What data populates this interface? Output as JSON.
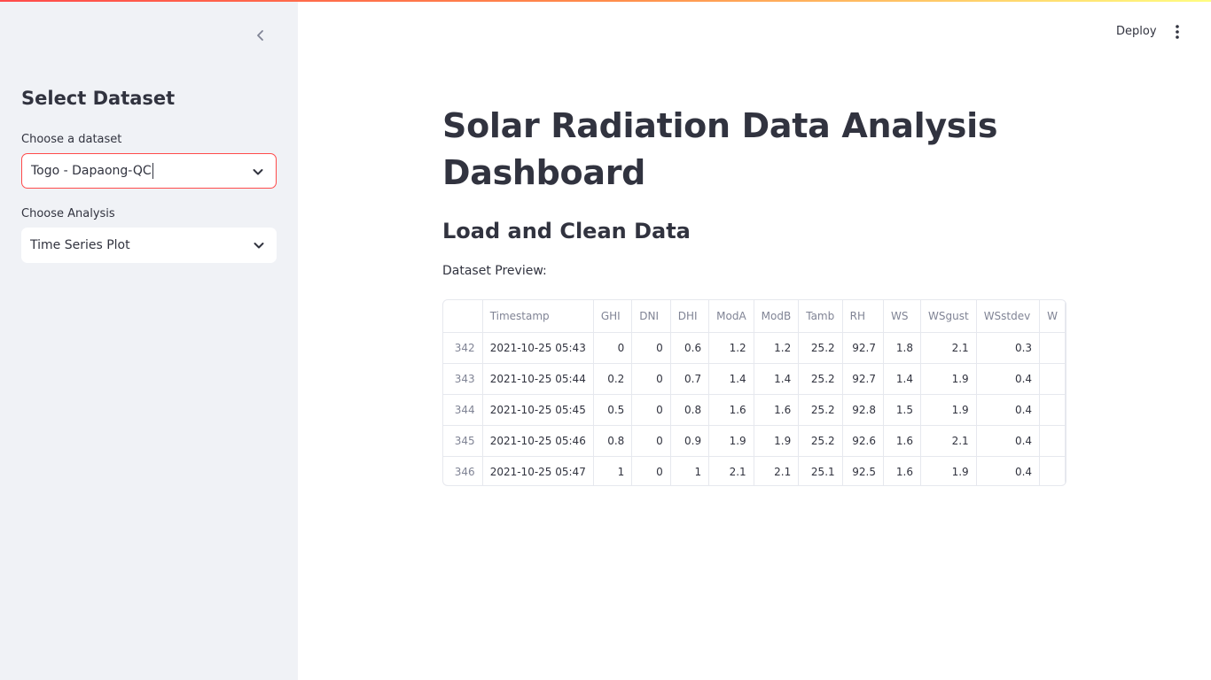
{
  "sidebar": {
    "title": "Select Dataset",
    "dataset_label": "Choose a dataset",
    "dataset_value": "Togo - Dapaong-QC",
    "analysis_label": "Choose Analysis",
    "analysis_value": "Time Series Plot"
  },
  "header": {
    "deploy_label": "Deploy"
  },
  "main": {
    "title": "Solar Radiation Data Analysis Dashboard",
    "subtitle": "Load and Clean Data",
    "preview_label": "Dataset Preview:"
  },
  "table": {
    "columns": [
      "",
      "Timestamp",
      "GHI",
      "DNI",
      "DHI",
      "ModA",
      "ModB",
      "Tamb",
      "RH",
      "WS",
      "WSgust",
      "WSstdev",
      "W"
    ],
    "rows": [
      [
        "342",
        "2021-10-25 05:43",
        "0",
        "0",
        "0.6",
        "1.2",
        "1.2",
        "25.2",
        "92.7",
        "1.8",
        "2.1",
        "0.3",
        ""
      ],
      [
        "343",
        "2021-10-25 05:44",
        "0.2",
        "0",
        "0.7",
        "1.4",
        "1.4",
        "25.2",
        "92.7",
        "1.4",
        "1.9",
        "0.4",
        ""
      ],
      [
        "344",
        "2021-10-25 05:45",
        "0.5",
        "0",
        "0.8",
        "1.6",
        "1.6",
        "25.2",
        "92.8",
        "1.5",
        "1.9",
        "0.4",
        ""
      ],
      [
        "345",
        "2021-10-25 05:46",
        "0.8",
        "0",
        "0.9",
        "1.9",
        "1.9",
        "25.2",
        "92.6",
        "1.6",
        "2.1",
        "0.4",
        ""
      ],
      [
        "346",
        "2021-10-25 05:47",
        "1",
        "0",
        "1",
        "2.1",
        "2.1",
        "25.1",
        "92.5",
        "1.6",
        "1.9",
        "0.4",
        ""
      ]
    ]
  },
  "icons": {
    "collapse": "chevron-left-icon",
    "menu": "kebab-menu-icon",
    "select": "chevron-down-icon"
  },
  "colors": {
    "accent": "#ff4b4b",
    "sidebar_bg": "#f0f2f6",
    "text": "#31333f"
  }
}
